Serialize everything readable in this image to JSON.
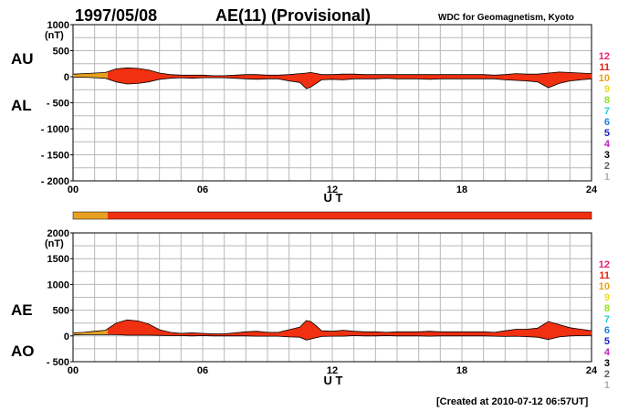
{
  "header": {
    "date": "1997/05/08",
    "title": "AE(11) (Provisional)",
    "institution": "WDC for Geomagnetism, Kyoto"
  },
  "footer": {
    "created": "[Created at 2010-07-12 06:57UT]"
  },
  "colors": {
    "orange": "#e8a020",
    "red": "#f03010",
    "grid": "#b8b8b8"
  },
  "station_count_legend": [
    {
      "label": "12",
      "color": "#e8207a"
    },
    {
      "label": "11",
      "color": "#e82010"
    },
    {
      "label": "10",
      "color": "#e8a020"
    },
    {
      "label": "9",
      "color": "#e8e020"
    },
    {
      "label": "8",
      "color": "#90e020"
    },
    {
      "label": "7",
      "color": "#20d0d0"
    },
    {
      "label": "6",
      "color": "#2080e0"
    },
    {
      "label": "5",
      "color": "#2020c0"
    },
    {
      "label": "4",
      "color": "#c020c0"
    },
    {
      "label": "3",
      "color": "#000000"
    },
    {
      "label": "2",
      "color": "#606060"
    },
    {
      "label": "1",
      "color": "#b0b0b0"
    }
  ],
  "chart_data": [
    {
      "type": "area",
      "labels": [
        "AU",
        "AL"
      ],
      "ylabel": "(nT)",
      "xlabel": "U T",
      "ylim": [
        -2000,
        1000
      ],
      "yticks": [
        "1000",
        "500",
        "0",
        "- 500",
        "- 1000",
        "- 1500",
        "- 2000"
      ],
      "xticks": [
        "00",
        "06",
        "12",
        "18",
        "24"
      ],
      "xlim": [
        0,
        24
      ],
      "orange_until_hour": 1.6,
      "x": [
        0,
        0.5,
        1,
        1.5,
        2,
        2.5,
        3,
        3.5,
        4,
        4.5,
        5,
        5.5,
        6,
        6.5,
        7,
        7.5,
        8,
        8.5,
        9,
        9.5,
        10,
        10.5,
        10.8,
        11,
        11.3,
        11.5,
        12,
        12.5,
        13,
        13.5,
        14,
        14.5,
        15,
        15.5,
        16,
        16.5,
        17,
        17.5,
        18,
        18.5,
        19,
        19.5,
        20,
        20.5,
        21,
        21.5,
        22,
        22.5,
        23,
        23.5,
        24
      ],
      "series": [
        {
          "name": "AU",
          "values": [
            50,
            60,
            70,
            80,
            150,
            170,
            160,
            130,
            70,
            40,
            30,
            30,
            30,
            20,
            20,
            30,
            40,
            40,
            30,
            30,
            40,
            60,
            70,
            80,
            60,
            40,
            40,
            50,
            50,
            40,
            40,
            40,
            40,
            40,
            40,
            40,
            40,
            40,
            40,
            40,
            40,
            30,
            40,
            60,
            50,
            50,
            70,
            90,
            80,
            70,
            60
          ]
        },
        {
          "name": "AL",
          "values": [
            -10,
            -10,
            -20,
            -30,
            -100,
            -140,
            -130,
            -100,
            -50,
            -30,
            -20,
            -30,
            -20,
            -20,
            -20,
            -30,
            -40,
            -50,
            -40,
            -40,
            -80,
            -110,
            -230,
            -200,
            -120,
            -60,
            -50,
            -60,
            -40,
            -40,
            -40,
            -30,
            -40,
            -40,
            -40,
            -50,
            -40,
            -40,
            -40,
            -40,
            -40,
            -40,
            -60,
            -70,
            -80,
            -100,
            -210,
            -130,
            -80,
            -60,
            -40
          ]
        }
      ]
    },
    {
      "type": "area",
      "labels": [
        "AE",
        "AO"
      ],
      "ylabel": "(nT)",
      "xlabel": "U T",
      "ylim": [
        -500,
        2000
      ],
      "yticks": [
        "2000",
        "1500",
        "1000",
        "500",
        "0",
        "- 500"
      ],
      "xticks": [
        "00",
        "06",
        "12",
        "18",
        "24"
      ],
      "xlim": [
        0,
        24
      ],
      "orange_until_hour": 1.6,
      "x": [
        0,
        0.5,
        1,
        1.5,
        2,
        2.5,
        3,
        3.5,
        4,
        4.5,
        5,
        5.5,
        6,
        6.5,
        7,
        7.5,
        8,
        8.5,
        9,
        9.5,
        10,
        10.5,
        10.8,
        11,
        11.3,
        11.5,
        12,
        12.5,
        13,
        13.5,
        14,
        14.5,
        15,
        15.5,
        16,
        16.5,
        17,
        17.5,
        18,
        18.5,
        19,
        19.5,
        20,
        20.5,
        21,
        21.5,
        22,
        22.5,
        23,
        23.5,
        24
      ],
      "series": [
        {
          "name": "AE",
          "values": [
            60,
            70,
            90,
            110,
            250,
            310,
            290,
            230,
            120,
            70,
            50,
            60,
            50,
            40,
            40,
            60,
            80,
            90,
            70,
            70,
            120,
            170,
            300,
            280,
            180,
            100,
            90,
            110,
            90,
            80,
            80,
            70,
            80,
            80,
            80,
            90,
            80,
            80,
            80,
            80,
            80,
            70,
            100,
            130,
            130,
            150,
            280,
            220,
            160,
            130,
            100
          ]
        },
        {
          "name": "AO",
          "values": [
            20,
            25,
            25,
            25,
            25,
            15,
            15,
            15,
            10,
            5,
            5,
            0,
            5,
            0,
            0,
            0,
            0,
            -5,
            -5,
            -5,
            -20,
            -25,
            -80,
            -60,
            -30,
            -10,
            -5,
            -5,
            5,
            0,
            0,
            5,
            0,
            0,
            0,
            -5,
            0,
            0,
            0,
            0,
            0,
            -5,
            -10,
            -5,
            -15,
            -25,
            -70,
            -20,
            0,
            5,
            10
          ]
        }
      ]
    }
  ],
  "station_bar": {
    "orange_until_hour": 1.6
  }
}
